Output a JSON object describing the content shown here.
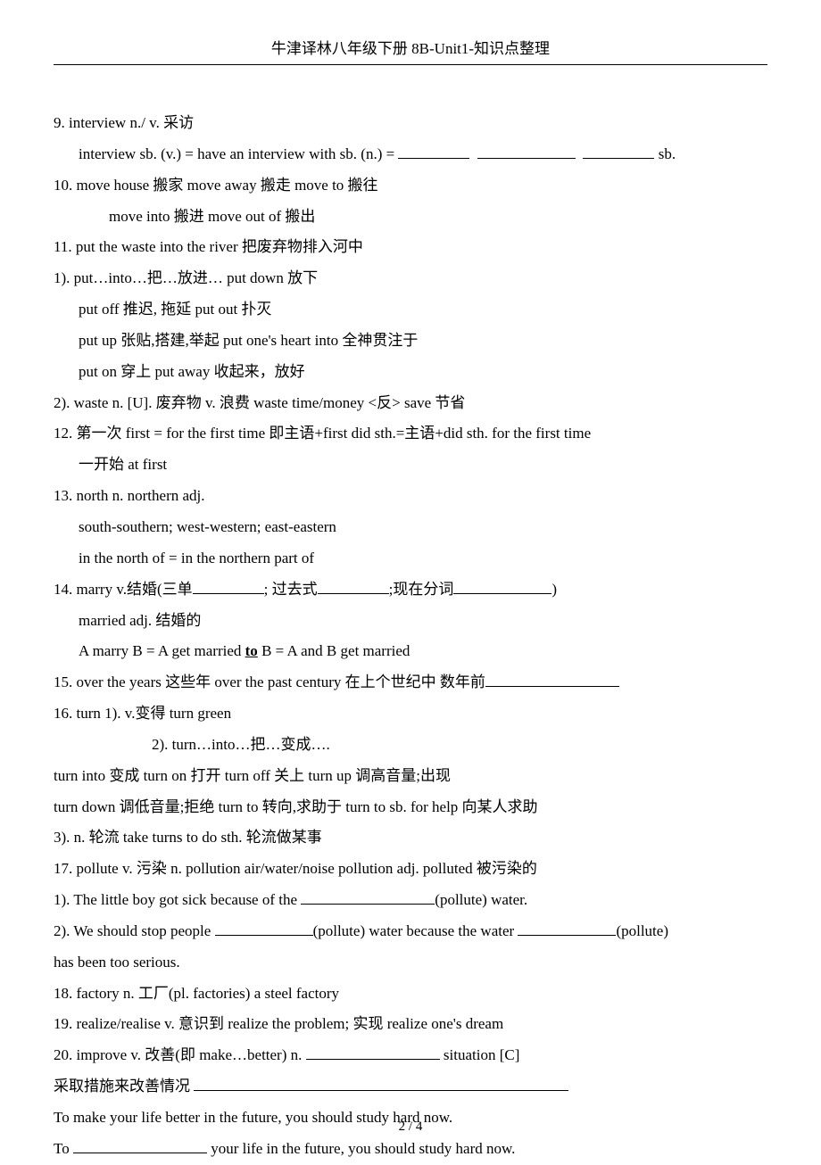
{
  "header": {
    "title": "牛津译林八年级下册 8B-Unit1-知识点整理"
  },
  "footer": {
    "page": "2 / 4"
  },
  "lines": {
    "l9a": "9. interview    n./ v.  采访",
    "l9b_pre": "interview sb. (v.) = have an interview with sb. (n.) = ",
    "l9b_post": " sb.",
    "l10a": "10.       move house 搬家      move away 搬走      move to 搬往",
    "l10b": "move into 搬进        move out of  搬出",
    "l11": "11. put the waste into the river  把废弃物排入河中",
    "l11_1": "1). put…into…把…放进…    put down 放下",
    "l11_1b": "put off  推迟,  拖延           put out  扑灭",
    "l11_1c": "put up 张贴,搭建,举起     put one's heart into 全神贯注于",
    "l11_1d": "put on  穿上                       put away  收起来，放好",
    "l11_2": "2). waste   n. [U].  废弃物     v.  浪费   waste time/money     <反> save 节省",
    "l12a": "12.  第一次 first = for the first time    即主语+first did sth.=主语+did sth. for the first time",
    "l12b": "一开始 at first",
    "l13a": "13. north   n.     northern    adj.",
    "l13b": "south-southern;   west-western;    east-eastern",
    "l13c": "in the north of  =  in the northern part of",
    "l14a_pre": "14. marry       v.结婚(三单",
    "l14a_mid1": ";  过去式",
    "l14a_mid2": ";现在分词",
    "l14a_post": ")",
    "l14b": "married     adj.  结婚的",
    "l14c_pre": "A marry B = A get married ",
    "l14c_to": "to",
    "l14c_post": " B = A and B get married",
    "l15_pre": "15. over the years  这些年   over the past century  在上个世纪中     数年前",
    "l16a": "16. turn     1). v.变得  turn green",
    "l16b": "2). turn…into…把…变成….",
    "l16c": "turn into 变成         turn on 打开         turn off 关上             turn up 调高音量;出现",
    "l16d": "turn down 调低音量;拒绝      turn to 转向,求助于        turn to sb. for help  向某人求助",
    "l16e": "3). n.  轮流       take turns to do sth.  轮流做某事",
    "l17a": "17. pollute   v.  污染    n. pollution   air/water/noise pollution      adj. polluted  被污染的",
    "l17_1_pre": "1). The little boy got sick because of the ",
    "l17_1_post": "(pollute) water.",
    "l17_2_pre": "2). We should stop people ",
    "l17_2_mid": "(pollute) water because the water ",
    "l17_2_post": "(pollute)",
    "l17_2_end": "has been too serious.",
    "l18": "18. factory   n.  工厂(pl. factories)      a steel factory",
    "l19": "19. realize/realise   v.  意识到  realize the problem;  实现 realize one's dream",
    "l20_pre": "20. improve   v.  改善(即 make…better)        n. ",
    "l20_post": "      situation [C]",
    "l20b_pre": "采取措施来改善情况  ",
    "l21a": "To make your life better in the future, you should study hard now.",
    "l21b_pre": "To ",
    "l21b_post": " your life in the future, you should study hard now."
  }
}
